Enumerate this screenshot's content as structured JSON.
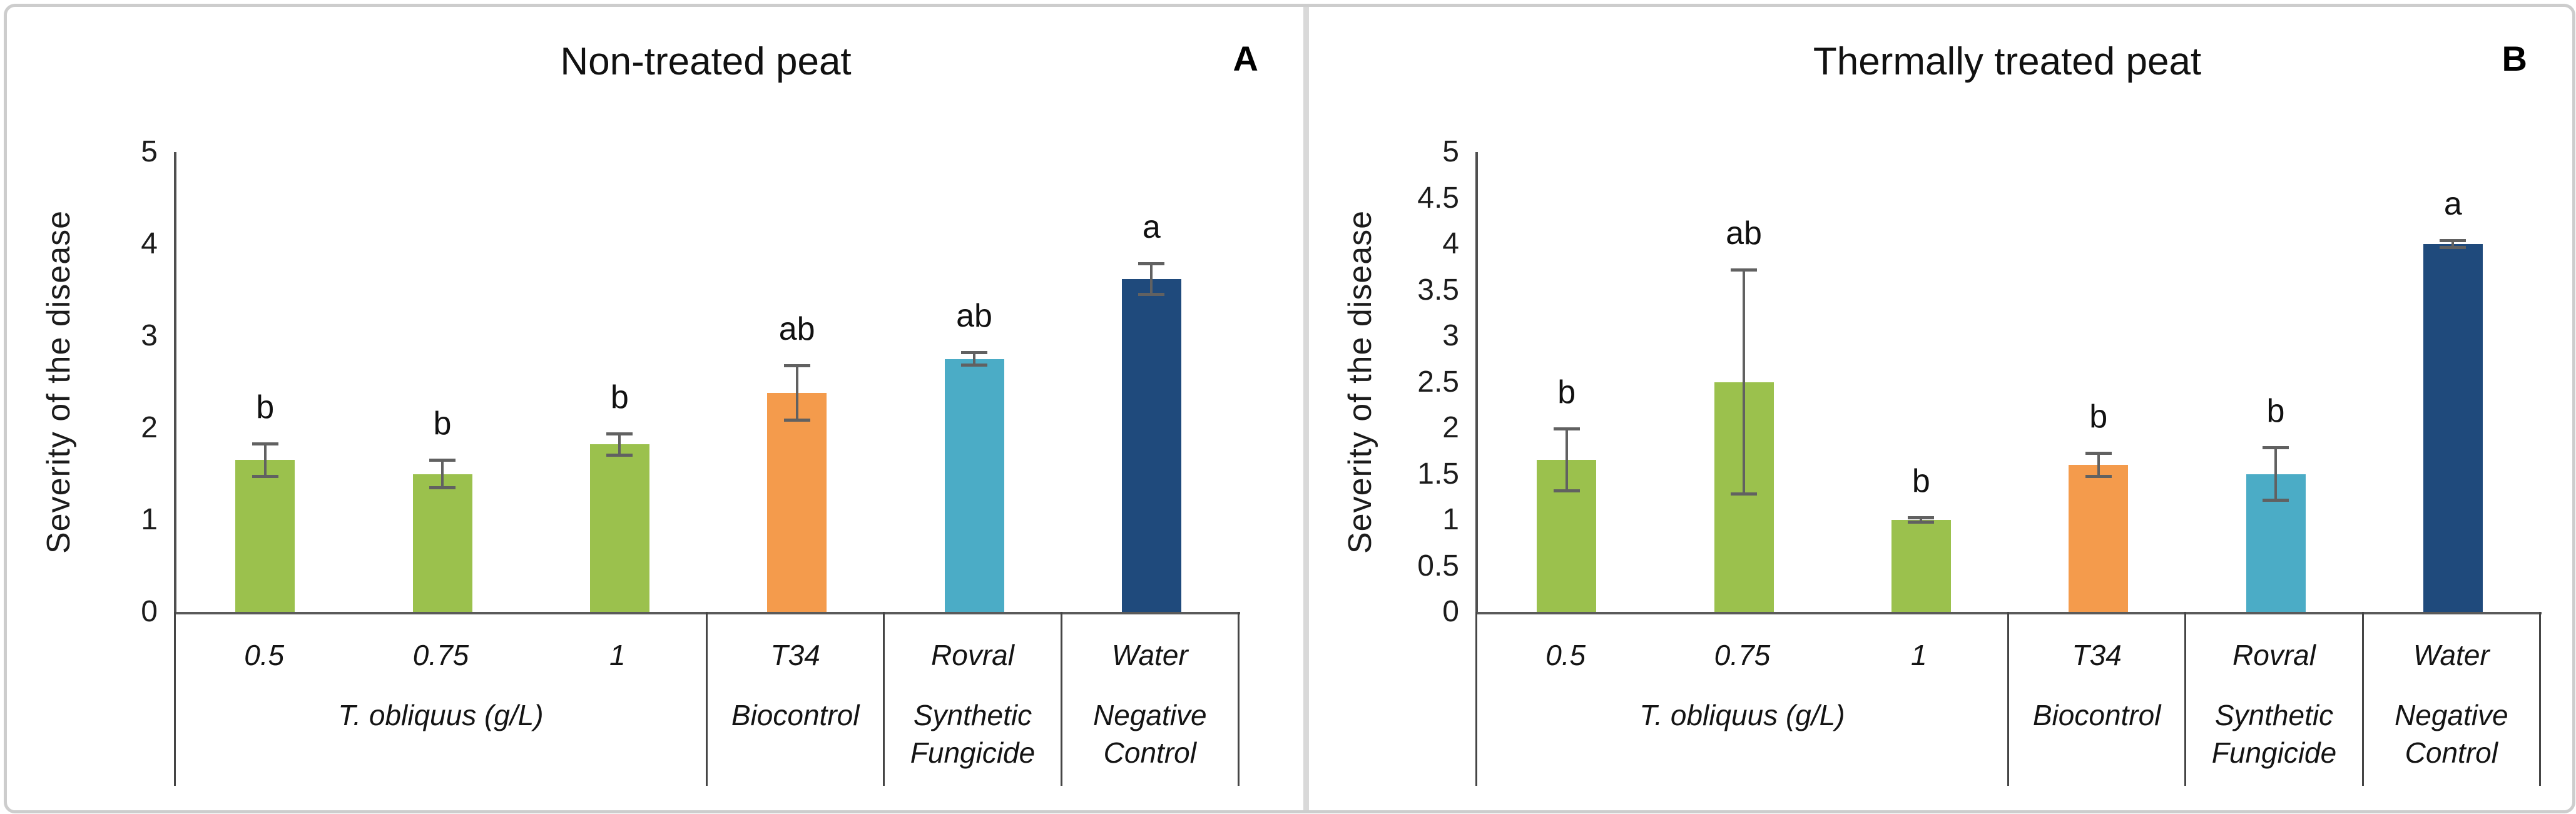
{
  "colors": {
    "algae_green": "#9BC14D",
    "t34_orange": "#F49B4C",
    "rovral_cyan": "#4BACC6",
    "water_dark_blue": "#1F4A7C",
    "error_bar": "#616161",
    "axis_line": "#4f4f4f",
    "frame_border": "#cdcdcd",
    "panel_divider": "#d9d9d9"
  },
  "chart_data": [
    {
      "type": "bar",
      "title": "Non-treated peat",
      "panel_label": "A",
      "ylabel": "Severity of the disease",
      "xlabel": "",
      "ylim": [
        0,
        5
      ],
      "ytick_labels": [
        "0",
        "1",
        "2",
        "3",
        "4",
        "5"
      ],
      "grid": false,
      "legend": null,
      "categories": [
        "0.5",
        "0.75",
        "1",
        "T34",
        "Rovral",
        "Water"
      ],
      "values": [
        1.65,
        1.5,
        1.82,
        2.38,
        2.75,
        3.62
      ],
      "errors": [
        0.18,
        0.15,
        0.12,
        0.3,
        0.07,
        0.17
      ],
      "sig_letters": [
        "b",
        "b",
        "b",
        "ab",
        "ab",
        "a"
      ],
      "bar_colors": [
        "#9BC14D",
        "#9BC14D",
        "#9BC14D",
        "#F49B4C",
        "#4BACC6",
        "#1F4A7C"
      ],
      "group_labels": [
        {
          "label": "T. obliquus (g/L)",
          "span": 3
        },
        {
          "label": "Biocontrol",
          "span": 1
        },
        {
          "label": "Synthetic Fungicide",
          "span": 1
        },
        {
          "label": "Negative Control",
          "span": 1
        }
      ]
    },
    {
      "type": "bar",
      "title": "Thermally treated peat",
      "panel_label": "B",
      "ylabel": "Severity of the disease",
      "xlabel": "",
      "ylim": [
        0,
        5
      ],
      "ytick_labels": [
        "0",
        "0.5",
        "1",
        "1.5",
        "2",
        "2.5",
        "3",
        "3.5",
        "4",
        "4.5",
        "5"
      ],
      "grid": false,
      "legend": null,
      "categories": [
        "0.5",
        "0.75",
        "1",
        "T34",
        "Rovral",
        "Water"
      ],
      "values": [
        1.65,
        2.5,
        1.0,
        1.6,
        1.5,
        4.0
      ],
      "errors": [
        0.34,
        1.22,
        0.03,
        0.13,
        0.29,
        0.04
      ],
      "sig_letters": [
        "b",
        "ab",
        "b",
        "b",
        "b",
        "a"
      ],
      "bar_colors": [
        "#9BC14D",
        "#9BC14D",
        "#9BC14D",
        "#F49B4C",
        "#4BACC6",
        "#1F4A7C"
      ],
      "group_labels": [
        {
          "label": "T. obliquus (g/L)",
          "span": 3
        },
        {
          "label": "Biocontrol",
          "span": 1
        },
        {
          "label": "Synthetic Fungicide",
          "span": 1
        },
        {
          "label": "Negative Control",
          "span": 1
        }
      ]
    }
  ]
}
